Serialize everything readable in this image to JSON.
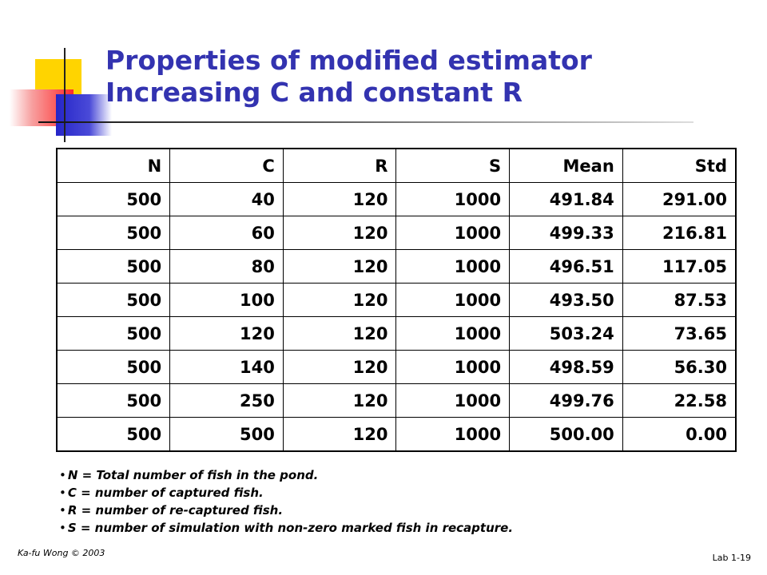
{
  "slide": {
    "title_line1": "Properties of modified estimator",
    "title_line2": "Increasing C and constant R",
    "footer_left": "Ka-fu Wong © 2003",
    "footer_right": "Lab 1-19",
    "title_color": "#3333b0"
  },
  "table": {
    "headers": [
      "N",
      "C",
      "R",
      "S",
      "Mean",
      "Std"
    ],
    "rows": [
      [
        "500",
        "40",
        "120",
        "1000",
        "491.84",
        "291.00"
      ],
      [
        "500",
        "60",
        "120",
        "1000",
        "499.33",
        "216.81"
      ],
      [
        "500",
        "80",
        "120",
        "1000",
        "496.51",
        "117.05"
      ],
      [
        "500",
        "100",
        "120",
        "1000",
        "493.50",
        "87.53"
      ],
      [
        "500",
        "120",
        "120",
        "1000",
        "503.24",
        "73.65"
      ],
      [
        "500",
        "140",
        "120",
        "1000",
        "498.59",
        "56.30"
      ],
      [
        "500",
        "250",
        "120",
        "1000",
        "499.76",
        "22.58"
      ],
      [
        "500",
        "500",
        "120",
        "1000",
        "500.00",
        "0.00"
      ]
    ]
  },
  "notes": [
    "N = Total number of fish in the pond.",
    "C = number of captured fish.",
    "R = number of re-captured fish.",
    "S = number of simulation with non-zero marked fish in recapture."
  ]
}
